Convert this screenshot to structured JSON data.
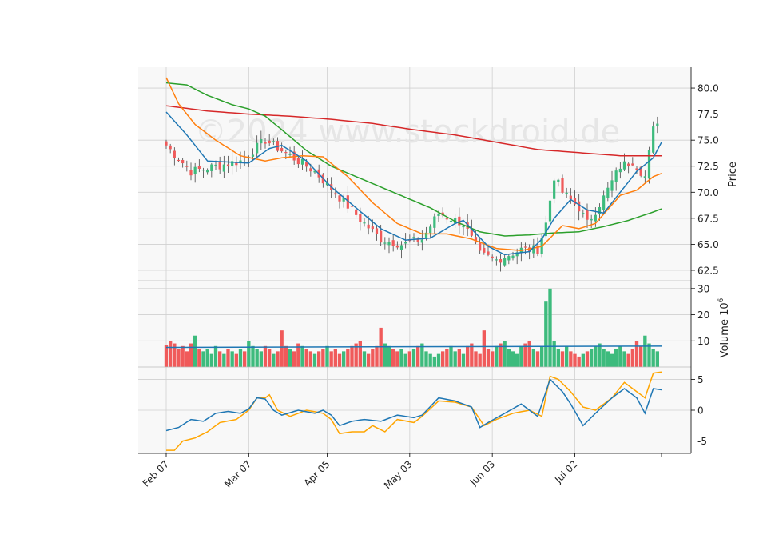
{
  "watermark": "©2024 www.stockdroid.de",
  "colors": {
    "up": "#3dbb7d",
    "down": "#f05a5a",
    "ma_short": "#1f77b4",
    "ma_mid": "#ff7f0e",
    "ma_long": "#2ca02c",
    "ma_xlong": "#d62728",
    "osc_a": "#1f77b4",
    "osc_b": "#ffa500",
    "grid": "#d0d0d0",
    "panel_bg": "#f8f8f8"
  },
  "chart_data": {
    "type": "candlestick",
    "x_tick_labels": [
      "Feb 07",
      "Mar 07",
      "Apr 05",
      "May 03",
      "Jun 03",
      "Jul 02"
    ],
    "x_tick_indices": [
      0,
      20,
      39,
      59,
      79,
      99
    ],
    "n_days": 120,
    "price_panel": {
      "ylabel": "Price",
      "ylim": [
        61.5,
        82
      ],
      "yticks": [
        "62.5",
        "65.0",
        "67.5",
        "70.0",
        "72.5",
        "75.0",
        "77.5",
        "80.0"
      ],
      "close_anchors": [
        [
          0,
          74.5
        ],
        [
          6,
          72.0
        ],
        [
          12,
          72.5
        ],
        [
          18,
          73.0
        ],
        [
          24,
          75.0
        ],
        [
          30,
          73.5
        ],
        [
          36,
          72.0
        ],
        [
          42,
          69.5
        ],
        [
          48,
          67.0
        ],
        [
          52,
          65.5
        ],
        [
          57,
          65.0
        ],
        [
          62,
          65.5
        ],
        [
          66,
          68.0
        ],
        [
          72,
          67.0
        ],
        [
          76,
          64.0
        ],
        [
          80,
          63.5
        ],
        [
          86,
          64.5
        ],
        [
          90,
          64.5
        ],
        [
          92,
          67.0
        ],
        [
          94,
          71.5
        ],
        [
          96,
          70.0
        ],
        [
          100,
          68.5
        ],
        [
          102,
          67.0
        ],
        [
          106,
          69.5
        ],
        [
          110,
          72.5
        ],
        [
          113,
          73.0
        ],
        [
          116,
          71.5
        ],
        [
          118,
          76.0
        ],
        [
          120,
          77.8
        ]
      ],
      "ma_short_anchors": [
        [
          0,
          77.7
        ],
        [
          5,
          75.5
        ],
        [
          10,
          73.0
        ],
        [
          20,
          72.8
        ],
        [
          25,
          74.2
        ],
        [
          28,
          74.5
        ],
        [
          34,
          73.0
        ],
        [
          40,
          70.5
        ],
        [
          46,
          68.5
        ],
        [
          52,
          66.5
        ],
        [
          58,
          65.4
        ],
        [
          64,
          65.6
        ],
        [
          70,
          67.0
        ],
        [
          72,
          67.3
        ],
        [
          78,
          64.8
        ],
        [
          82,
          64.0
        ],
        [
          88,
          64.3
        ],
        [
          91,
          65.5
        ],
        [
          94,
          67.5
        ],
        [
          98,
          69.3
        ],
        [
          102,
          68.3
        ],
        [
          106,
          68.0
        ],
        [
          110,
          70.0
        ],
        [
          114,
          72.0
        ],
        [
          118,
          73.3
        ],
        [
          120,
          74.8
        ]
      ],
      "ma_mid_anchors": [
        [
          0,
          81.0
        ],
        [
          3,
          78.5
        ],
        [
          7,
          76.5
        ],
        [
          12,
          75.0
        ],
        [
          18,
          73.5
        ],
        [
          24,
          73.0
        ],
        [
          28,
          73.3
        ],
        [
          33,
          73.5
        ],
        [
          38,
          73.4
        ],
        [
          44,
          71.5
        ],
        [
          50,
          69.0
        ],
        [
          56,
          67.0
        ],
        [
          62,
          66.0
        ],
        [
          68,
          66.0
        ],
        [
          74,
          65.5
        ],
        [
          80,
          64.6
        ],
        [
          86,
          64.4
        ],
        [
          91,
          64.8
        ],
        [
          96,
          66.8
        ],
        [
          100,
          66.5
        ],
        [
          104,
          67.0
        ],
        [
          110,
          69.7
        ],
        [
          114,
          70.2
        ],
        [
          118,
          71.5
        ],
        [
          120,
          71.8
        ]
      ],
      "ma_long_anchors": [
        [
          0,
          80.5
        ],
        [
          5,
          80.3
        ],
        [
          10,
          79.3
        ],
        [
          16,
          78.4
        ],
        [
          20,
          78.0
        ],
        [
          24,
          77.3
        ],
        [
          28,
          76.0
        ],
        [
          34,
          74.0
        ],
        [
          40,
          72.5
        ],
        [
          46,
          71.5
        ],
        [
          52,
          70.5
        ],
        [
          58,
          69.5
        ],
        [
          64,
          68.5
        ],
        [
          70,
          67.2
        ],
        [
          76,
          66.2
        ],
        [
          82,
          65.8
        ],
        [
          88,
          65.9
        ],
        [
          94,
          66.1
        ],
        [
          100,
          66.2
        ],
        [
          106,
          66.7
        ],
        [
          112,
          67.3
        ],
        [
          118,
          68.1
        ],
        [
          120,
          68.4
        ]
      ],
      "ma_xlong_anchors": [
        [
          0,
          78.3
        ],
        [
          10,
          77.8
        ],
        [
          20,
          77.5
        ],
        [
          30,
          77.3
        ],
        [
          40,
          77.0
        ],
        [
          50,
          76.6
        ],
        [
          60,
          76.0
        ],
        [
          70,
          75.5
        ],
        [
          80,
          74.8
        ],
        [
          90,
          74.1
        ],
        [
          100,
          73.8
        ],
        [
          110,
          73.5
        ],
        [
          120,
          73.5
        ]
      ]
    },
    "volume_panel": {
      "ylabel": "Volume",
      "scale_label": "10",
      "scale_exponent": "6",
      "ylim": [
        0,
        33
      ],
      "yticks": [
        "10",
        "20",
        "30"
      ],
      "volume_ma_level": 8.0,
      "baseline_volume": [
        8.5,
        10,
        9,
        7,
        8,
        6,
        9,
        12,
        7,
        6,
        7,
        5,
        8,
        6,
        5,
        7,
        6,
        5,
        7,
        6,
        10,
        8,
        7,
        6,
        8,
        7,
        5,
        6,
        14,
        8,
        7,
        6,
        9,
        8,
        7,
        6,
        5,
        6,
        7,
        8,
        6,
        7,
        5,
        6,
        7,
        8,
        9,
        10,
        6,
        5,
        7,
        8,
        15,
        9,
        8,
        7,
        6,
        7,
        5,
        6,
        7,
        8,
        9,
        6,
        5,
        4,
        5,
        6,
        7,
        8,
        6,
        7,
        5,
        8,
        9,
        6,
        5,
        14,
        7,
        6,
        8,
        9,
        10,
        7,
        6,
        5,
        8,
        9,
        10,
        7,
        6,
        8,
        25,
        30,
        10,
        7,
        6,
        8,
        6,
        5,
        4,
        5,
        6,
        7,
        8,
        9,
        7,
        6,
        5,
        7,
        8,
        6,
        5,
        7,
        10,
        8,
        12,
        9,
        7,
        6
      ]
    },
    "oscillator_panel": {
      "ylim": [
        -7,
        7
      ],
      "yticks": [
        "-5",
        "0",
        "5"
      ],
      "osc_a_anchors": [
        [
          0,
          -3.3
        ],
        [
          3,
          -2.8
        ],
        [
          6,
          -1.5
        ],
        [
          9,
          -1.8
        ],
        [
          12,
          -0.5
        ],
        [
          15,
          -0.2
        ],
        [
          18,
          -0.5
        ],
        [
          20,
          0.2
        ],
        [
          22,
          2.0
        ],
        [
          24,
          1.8
        ],
        [
          26,
          0.0
        ],
        [
          28,
          -0.8
        ],
        [
          32,
          0.0
        ],
        [
          36,
          -0.5
        ],
        [
          38,
          0.0
        ],
        [
          40,
          -0.8
        ],
        [
          42,
          -2.5
        ],
        [
          45,
          -1.8
        ],
        [
          48,
          -1.5
        ],
        [
          52,
          -1.8
        ],
        [
          56,
          -0.8
        ],
        [
          60,
          -1.2
        ],
        [
          62,
          -0.8
        ],
        [
          66,
          2.0
        ],
        [
          70,
          1.5
        ],
        [
          74,
          0.5
        ],
        [
          76,
          -2.8
        ],
        [
          78,
          -2.0
        ],
        [
          82,
          -0.5
        ],
        [
          86,
          1.0
        ],
        [
          90,
          -1.0
        ],
        [
          93,
          5.0
        ],
        [
          96,
          3.0
        ],
        [
          98,
          1.0
        ],
        [
          101,
          -2.5
        ],
        [
          104,
          -0.5
        ],
        [
          108,
          2.0
        ],
        [
          111,
          3.5
        ],
        [
          114,
          2.0
        ],
        [
          116,
          -0.5
        ],
        [
          118,
          3.5
        ],
        [
          120,
          3.3
        ]
      ],
      "osc_b_anchors": [
        [
          0,
          -6.5
        ],
        [
          2,
          -6.5
        ],
        [
          4,
          -5.0
        ],
        [
          7,
          -4.5
        ],
        [
          10,
          -3.5
        ],
        [
          13,
          -2.0
        ],
        [
          17,
          -1.5
        ],
        [
          20,
          0.0
        ],
        [
          22,
          2.0
        ],
        [
          24,
          2.0
        ],
        [
          25,
          2.5
        ],
        [
          27,
          0.0
        ],
        [
          30,
          -1.0
        ],
        [
          34,
          0.0
        ],
        [
          38,
          -0.5
        ],
        [
          40,
          -1.5
        ],
        [
          42,
          -3.8
        ],
        [
          45,
          -3.5
        ],
        [
          48,
          -3.5
        ],
        [
          50,
          -2.5
        ],
        [
          53,
          -3.5
        ],
        [
          56,
          -1.5
        ],
        [
          60,
          -2.0
        ],
        [
          62,
          -1.0
        ],
        [
          66,
          1.5
        ],
        [
          70,
          1.3
        ],
        [
          74,
          0.5
        ],
        [
          77,
          -2.5
        ],
        [
          80,
          -1.5
        ],
        [
          84,
          -0.5
        ],
        [
          88,
          0.0
        ],
        [
          91,
          -1.0
        ],
        [
          93,
          5.5
        ],
        [
          95,
          5.0
        ],
        [
          98,
          3.0
        ],
        [
          101,
          0.5
        ],
        [
          104,
          0.0
        ],
        [
          108,
          2.0
        ],
        [
          111,
          4.5
        ],
        [
          114,
          3.0
        ],
        [
          116,
          2.0
        ],
        [
          118,
          6.0
        ],
        [
          120,
          6.2
        ]
      ]
    }
  }
}
